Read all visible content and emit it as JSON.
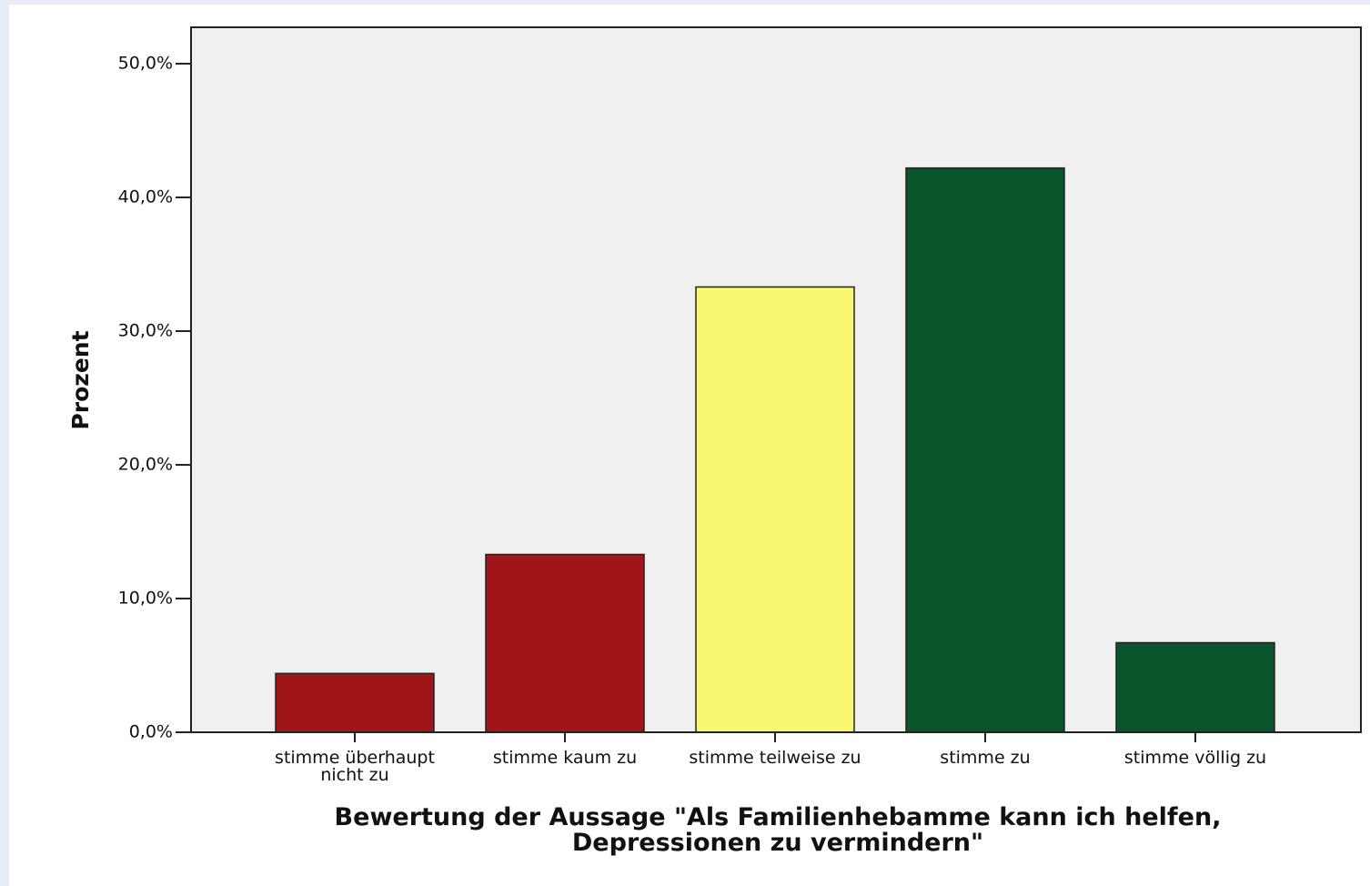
{
  "chart_data": {
    "type": "bar",
    "categories": [
      "stimme überhaupt nicht zu",
      "stimme kaum zu",
      "stimme teilweise zu",
      "stimme zu",
      "stimme völlig zu"
    ],
    "values": [
      4.4,
      13.3,
      33.3,
      42.2,
      6.7
    ],
    "colors": [
      "#a01518",
      "#a01518",
      "#faf870",
      "#0a542c",
      "#0a542c"
    ],
    "y_label": "Prozent",
    "x_label": "Bewertung der Aussage \"Als Familienhebamme kann ich helfen, Depressionen zu vermindern\"",
    "ylim": [
      0,
      50
    ],
    "yticks": [
      {
        "value": 0,
        "label": "0,0%"
      },
      {
        "value": 10,
        "label": "10,0%"
      },
      {
        "value": 20,
        "label": "20,0%"
      },
      {
        "value": 30,
        "label": "30,0%"
      },
      {
        "value": 40,
        "label": "40,0%"
      },
      {
        "value": 50,
        "label": "50,0%"
      }
    ],
    "grid": false
  }
}
